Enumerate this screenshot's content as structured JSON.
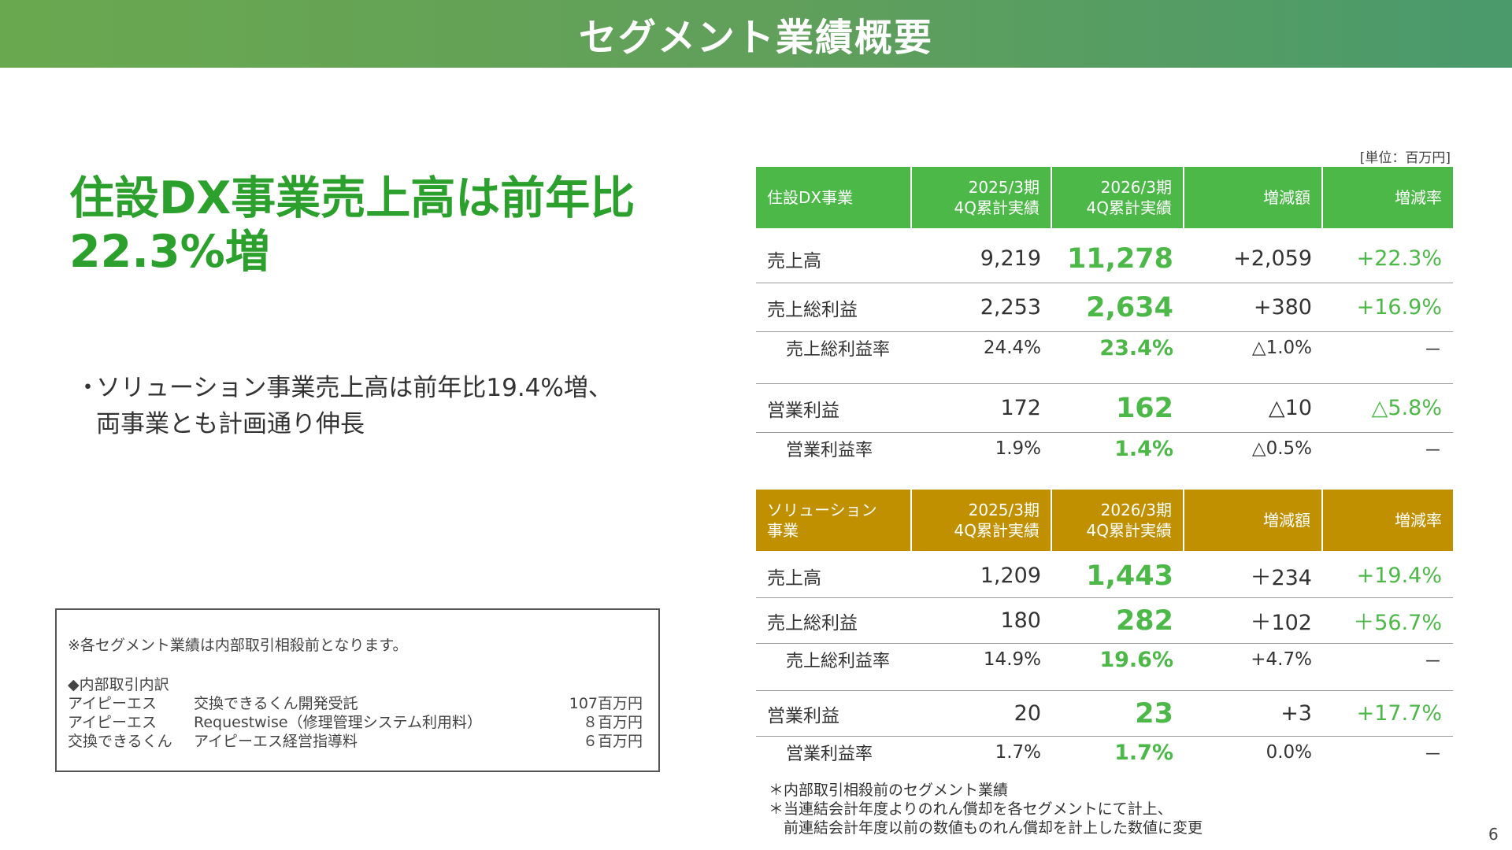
{
  "header": {
    "title": "セグメント業績概要"
  },
  "headline": {
    "line1": "住設DX事業売上高は前年比",
    "line2": "22.3%増"
  },
  "bullet": {
    "marker": "・",
    "line1": "ソリューション事業売上高は前年比19.4%増、",
    "line2": "両事業とも計画通り伸長"
  },
  "note_box": {
    "line1": "※各セグメント業績は内部取引相殺前となります。",
    "line2": "◆内部取引内訳",
    "rows": [
      {
        "company": "アイピーエス",
        "item": "交換できるくん開発受託",
        "amount": "107百万円"
      },
      {
        "company": "アイピーエス",
        "item": "Requestwise（修理管理システム利用料）",
        "amount": "８百万円"
      },
      {
        "company": "交換できるくん",
        "item": "アイピーエス経営指導料",
        "amount": "６百万円"
      }
    ]
  },
  "unit_label": "[単位：百万円]",
  "colors": {
    "green": "#4cb848",
    "gold": "#c09000",
    "header_band": "#6aa84f"
  },
  "table_dx": {
    "header": {
      "segment": "住設DX事業",
      "prev_l1": "2025/3期",
      "prev_l2": "4Q累計実績",
      "cur_l1": "2026/3期",
      "cur_l2": "4Q累計実績",
      "diff": "増減額",
      "rate": "増減率"
    },
    "rows": [
      {
        "label": "売上高",
        "prev": "9,219",
        "cur": "11,278",
        "diff": "+2,059",
        "rate": "+22.3%"
      },
      {
        "label": "売上総利益",
        "prev": "2,253",
        "cur": "2,634",
        "diff": "+380",
        "rate": "+16.9%"
      },
      {
        "label": "売上総利益率",
        "prev": "24.4%",
        "cur": "23.4%",
        "diff": "△1.0%",
        "rate": "－"
      },
      {
        "label": "営業利益",
        "prev": "172",
        "cur": "162",
        "diff": "△10",
        "rate": "△5.8%"
      },
      {
        "label": "営業利益率",
        "prev": "1.9%",
        "cur": "1.4%",
        "diff": "△0.5%",
        "rate": "－"
      }
    ]
  },
  "table_sol": {
    "header": {
      "segment_l1": "ソリューション",
      "segment_l2": "事業",
      "prev_l1": "2025/3期",
      "prev_l2": "4Q累計実績",
      "cur_l1": "2026/3期",
      "cur_l2": "4Q累計実績",
      "diff": "増減額",
      "rate": "増減率"
    },
    "rows": [
      {
        "label": "売上高",
        "prev": "1,209",
        "cur": "1,443",
        "diff": "＋234",
        "rate": "+19.4%"
      },
      {
        "label": "売上総利益",
        "prev": "180",
        "cur": "282",
        "diff": "＋102",
        "rate": "＋56.7%"
      },
      {
        "label": "売上総利益率",
        "prev": "14.9%",
        "cur": "19.6%",
        "diff": "+4.7%",
        "rate": "－"
      },
      {
        "label": "営業利益",
        "prev": "20",
        "cur": "23",
        "diff": "+3",
        "rate": "+17.7%"
      },
      {
        "label": "営業利益率",
        "prev": "1.7%",
        "cur": "1.7%",
        "diff": "0.0%",
        "rate": "－"
      }
    ]
  },
  "footnotes": {
    "line1": "＊内部取引相殺前のセグメント業績",
    "line2": "＊当連結会計年度よりのれん償却を各セグメントにて計上、",
    "line3": "　前連結会計年度以前の数値ものれん償却を計上した数値に変更"
  },
  "page_number": "6"
}
